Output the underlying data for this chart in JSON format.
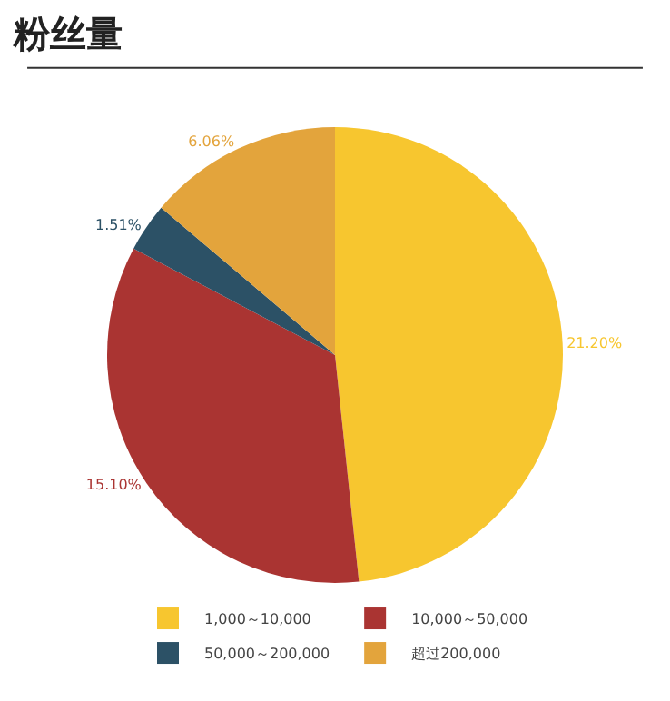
{
  "chart_data": {
    "type": "pie",
    "title": "粉丝量",
    "categories": [
      "1,000～10,000",
      "10,000～50,000",
      "50,000～200,000",
      "超过200,000"
    ],
    "values": [
      21.2,
      15.1,
      1.51,
      6.06
    ],
    "value_labels": [
      "21.20%",
      "15.10%",
      "1.51%",
      "6.06%"
    ],
    "colors": [
      "#f7c62f",
      "#aa3432",
      "#2c5166",
      "#e3a43c"
    ],
    "legend": "bottom"
  }
}
